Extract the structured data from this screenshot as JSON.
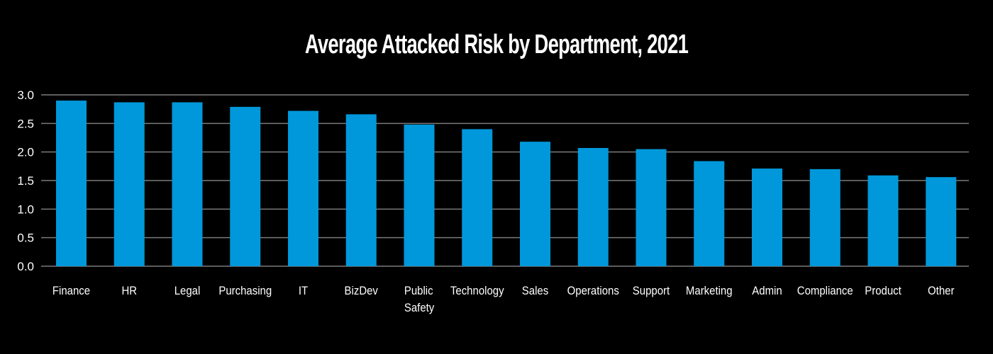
{
  "chart_data": {
    "type": "bar",
    "title": "Average Attacked Risk by Department, 2021",
    "xlabel": "",
    "ylabel": "",
    "ylim": [
      0,
      3.0
    ],
    "yticks": [
      0.0,
      0.5,
      1.0,
      1.5,
      2.0,
      2.5,
      3.0
    ],
    "ytick_labels": [
      "0.0",
      "0.5",
      "1.0",
      "1.5",
      "2.0",
      "2.5",
      "3.0"
    ],
    "grid": true,
    "legend": "none",
    "bar_color": "#0098DA",
    "grid_color": "#7A7A7A",
    "background_color": "#000000",
    "text_color": "#FFFFFF",
    "categories": [
      "Finance",
      "HR",
      "Legal",
      "Purchasing",
      "IT",
      "BizDev",
      "Public Safety",
      "Technology",
      "Sales",
      "Operations",
      "Support",
      "Marketing",
      "Admin",
      "Compliance",
      "Product",
      "Other"
    ],
    "category_label_lines": [
      [
        "Finance"
      ],
      [
        "HR"
      ],
      [
        "Legal"
      ],
      [
        "Purchasing"
      ],
      [
        "IT"
      ],
      [
        "BizDev"
      ],
      [
        "Public",
        "Safety"
      ],
      [
        "Technology"
      ],
      [
        "Sales"
      ],
      [
        "Operations"
      ],
      [
        "Support"
      ],
      [
        "Marketing"
      ],
      [
        "Admin"
      ],
      [
        "Compliance"
      ],
      [
        "Product"
      ],
      [
        "Other"
      ]
    ],
    "values": [
      2.9,
      2.87,
      2.87,
      2.79,
      2.72,
      2.66,
      2.48,
      2.4,
      2.18,
      2.07,
      2.05,
      1.84,
      1.71,
      1.7,
      1.59,
      1.56
    ]
  }
}
